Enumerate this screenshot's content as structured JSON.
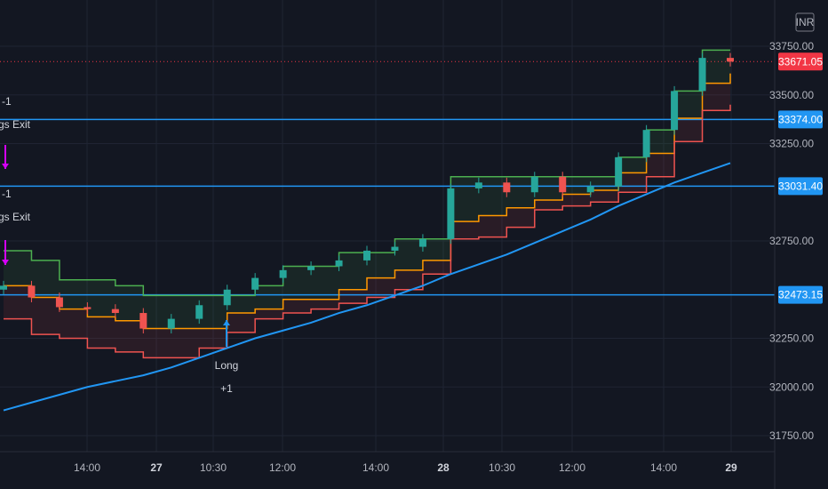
{
  "currency_badge": "INR",
  "colors": {
    "background": "#131722",
    "grid": "#1f2433",
    "up": "#26a69a",
    "down": "#ef5350",
    "upper_band": "#4caf50",
    "lower_band": "#ef5350",
    "mid_band": "#ff9800",
    "ma": "#2196f3",
    "level_line": "#2196f3",
    "last_price": "#f23645",
    "signal_exit": "#d500f9",
    "signal_long": "#2196f3"
  },
  "chart_data": {
    "type": "candlestick",
    "y_ticks": [
      "33750.00",
      "33500.00",
      "33250.00",
      "32750.00",
      "32250.00",
      "32000.00",
      "31750.00"
    ],
    "x_ticks": [
      {
        "label": "14:00",
        "bold": false
      },
      {
        "label": "27",
        "bold": true
      },
      {
        "label": "10:30",
        "bold": false
      },
      {
        "label": "12:00",
        "bold": false
      },
      {
        "label": "14:00",
        "bold": false
      },
      {
        "label": "28",
        "bold": true
      },
      {
        "label": "10:30",
        "bold": false
      },
      {
        "label": "12:00",
        "bold": false
      },
      {
        "label": "14:00",
        "bold": false
      },
      {
        "label": "29",
        "bold": true
      }
    ],
    "ylim": [
      31700,
      33900
    ],
    "horizontal_levels": [
      "33374.00",
      "33031.40",
      "32473.15"
    ],
    "last_price": "33671.05",
    "band_upper": [
      32700,
      32650,
      32550,
      32550,
      32520,
      32470,
      32470,
      32470,
      32470,
      32520,
      32620,
      32620,
      32690,
      32690,
      32760,
      32760,
      33080,
      33080,
      33080,
      33080,
      33080,
      33080,
      33180,
      33320,
      33520,
      33730,
      33730
    ],
    "band_mid": [
      32520,
      32460,
      32400,
      32360,
      32340,
      32300,
      32300,
      32300,
      32380,
      32400,
      32450,
      32450,
      32500,
      32560,
      32600,
      32650,
      32850,
      32880,
      32920,
      32960,
      32990,
      33010,
      33100,
      33200,
      33380,
      33560,
      33610
    ],
    "band_lower": [
      32350,
      32270,
      32250,
      32200,
      32180,
      32150,
      32150,
      32200,
      32280,
      32350,
      32380,
      32400,
      32430,
      32460,
      32500,
      32580,
      32760,
      32770,
      32820,
      32910,
      32930,
      32950,
      33000,
      33080,
      33260,
      33420,
      33450
    ],
    "ma": [
      31880,
      31920,
      31960,
      32000,
      32030,
      32060,
      32100,
      32150,
      32200,
      32250,
      32290,
      32330,
      32380,
      32420,
      32470,
      32520,
      32580,
      32630,
      32680,
      32740,
      32800,
      32860,
      32930,
      32990,
      33050,
      33100,
      33150
    ],
    "close": [
      32520,
      32460,
      32410,
      32400,
      32380,
      32300,
      32350,
      32420,
      32500,
      32560,
      32600,
      32620,
      32650,
      32700,
      32720,
      32760,
      33020,
      33050,
      33000,
      33080,
      33000,
      33030,
      33180,
      33320,
      33520,
      33690,
      33671
    ]
  },
  "annotations": [
    {
      "text": "-1",
      "kind": "exit"
    },
    {
      "text": "gs Exit",
      "kind": "exit"
    },
    {
      "text": "-1",
      "kind": "exit"
    },
    {
      "text": "gs Exit",
      "kind": "exit"
    },
    {
      "text": "Long",
      "kind": "long"
    },
    {
      "text": "+1",
      "kind": "long"
    }
  ]
}
